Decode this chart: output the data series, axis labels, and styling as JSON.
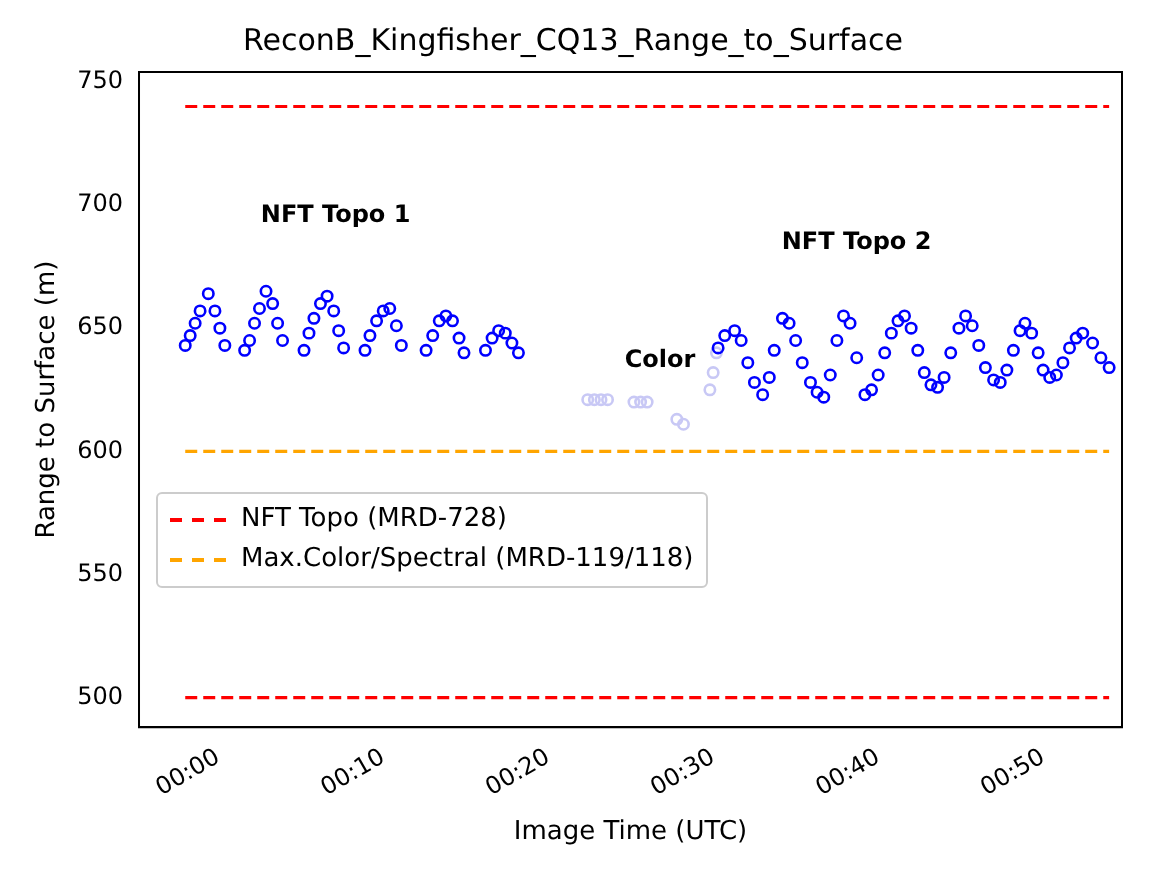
{
  "chart_data": {
    "type": "scatter",
    "title": "ReconB_Kingfisher_CQ13_Range_to_Surface",
    "xlabel": "Image Time (UTC)",
    "ylabel": "Range to Surface (m)",
    "xlim": [
      -0.08,
      0.913
    ],
    "xticks": [
      {
        "value": 0,
        "label": "00:00"
      },
      {
        "value": 0.1667,
        "label": "00:10"
      },
      {
        "value": 0.3333,
        "label": "00:20"
      },
      {
        "value": 0.5,
        "label": "00:30"
      },
      {
        "value": 0.6667,
        "label": "00:40"
      },
      {
        "value": 0.8333,
        "label": "00:50"
      }
    ],
    "ylim": [
      488,
      754
    ],
    "yticks": [
      500,
      550,
      600,
      650,
      700,
      750
    ],
    "grid": false,
    "legend": "left",
    "marker": "circle",
    "annotations": [
      "NFT Topo 1",
      "Color",
      "NFT Topo 2"
    ],
    "series": [
      {
        "type": "scatter",
        "color": "#0000ff",
        "x": [
          -0.0333,
          -0.0283,
          -0.0233,
          -0.0183,
          -0.01,
          -0.0033,
          0.0017,
          0.0067,
          0.0267,
          0.0317,
          0.0367,
          0.0417,
          0.0483,
          0.055,
          0.06,
          0.065,
          0.0867,
          0.0917,
          0.0967,
          0.1033,
          0.11,
          0.1167,
          0.1217,
          0.1267,
          0.1483,
          0.1533,
          0.16,
          0.1667,
          0.1733,
          0.18,
          0.185,
          0.21,
          0.2167,
          0.2233,
          0.23,
          0.2367,
          0.2433,
          0.2483,
          0.27,
          0.2767,
          0.2833,
          0.29,
          0.2967,
          0.3033,
          0.505,
          0.5117,
          0.5217,
          0.5283,
          0.535,
          0.5417,
          0.55,
          0.5567,
          0.5617,
          0.57,
          0.5767,
          0.5833,
          0.59,
          0.5983,
          0.605,
          0.6117,
          0.6183,
          0.625,
          0.6317,
          0.6383,
          0.645,
          0.6533,
          0.66,
          0.6667,
          0.6733,
          0.68,
          0.6867,
          0.6933,
          0.7,
          0.7067,
          0.7133,
          0.72,
          0.7267,
          0.7333,
          0.74,
          0.7483,
          0.755,
          0.7617,
          0.7683,
          0.775,
          0.7833,
          0.79,
          0.7967,
          0.8033,
          0.81,
          0.815,
          0.8217,
          0.8283,
          0.8333,
          0.84,
          0.8467,
          0.8533,
          0.86,
          0.8667,
          0.8733,
          0.8833,
          0.8917,
          0.9
        ],
        "values": [
          643,
          647,
          652,
          657,
          664,
          657,
          650,
          643,
          641,
          645,
          652,
          658,
          665,
          660,
          652,
          645,
          641,
          648,
          654,
          660,
          663,
          657,
          649,
          642,
          641,
          647,
          653,
          657,
          658,
          651,
          643,
          641,
          647,
          653,
          655,
          653,
          646,
          640,
          641,
          646,
          649,
          648,
          644,
          640,
          642,
          647,
          649,
          645,
          636,
          628,
          623,
          630,
          641,
          654,
          652,
          645,
          636,
          628,
          624,
          622,
          631,
          645,
          655,
          652,
          638,
          623,
          625,
          631,
          640,
          648,
          653,
          655,
          650,
          641,
          632,
          627,
          626,
          630,
          640,
          650,
          655,
          651,
          643,
          634,
          629,
          628,
          633,
          641,
          649,
          652,
          648,
          640,
          633,
          630,
          631,
          636,
          642,
          646,
          648,
          644,
          638,
          634
        ]
      },
      {
        "type": "scatter",
        "color": "#c8c8f5",
        "x": [
          0.3733,
          0.38,
          0.3867,
          0.3933,
          0.42,
          0.4267,
          0.4333,
          0.4633,
          0.47,
          0.4967,
          0.5,
          0.5033
        ],
        "values": [
          621,
          621,
          621,
          621,
          620,
          620,
          620,
          613,
          611,
          625,
          632,
          640
        ]
      },
      {
        "type": "line",
        "name": "NFT Topo (MRD-728)",
        "color": "#ff0000",
        "marker": "none",
        "line_style": "dashed",
        "x": [
          -0.0333,
          0.9
        ],
        "values": [
          740,
          740
        ]
      },
      {
        "type": "line",
        "color": "#ff0000",
        "marker": "none",
        "line_style": "dashed",
        "x": [
          -0.0333,
          0.9
        ],
        "values": [
          500,
          500
        ]
      },
      {
        "type": "line",
        "name": "Max.Color/Spectral (MRD-119/118)",
        "color": "#ffa500",
        "marker": "none",
        "line_style": "dashed",
        "x": [
          -0.0333,
          0.9
        ],
        "values": [
          600,
          600
        ]
      }
    ]
  }
}
